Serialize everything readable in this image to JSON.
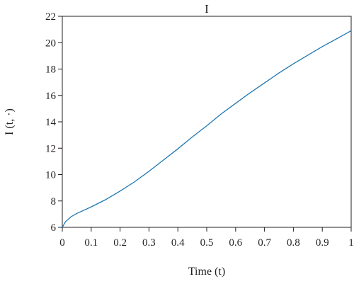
{
  "chart_data": {
    "type": "line",
    "title": "I",
    "xlabel": "Time (t)",
    "ylabel": "I (t, ·)",
    "xlim": [
      0,
      1
    ],
    "ylim": [
      6,
      22
    ],
    "x_ticks": [
      "0",
      "0.1",
      "0.2",
      "0.3",
      "0.4",
      "0.5",
      "0.6",
      "0.7",
      "0.8",
      "0.9",
      "1"
    ],
    "y_ticks": [
      "6",
      "8",
      "10",
      "12",
      "14",
      "16",
      "18",
      "20",
      "22"
    ],
    "grid": false,
    "colors": {
      "line": "#1f77b4",
      "axes": "#231f20"
    },
    "series": [
      {
        "x": [
          0,
          0.005,
          0.01,
          0.02,
          0.03,
          0.05,
          0.075,
          0.1,
          0.15,
          0.2,
          0.25,
          0.3,
          0.35,
          0.4,
          0.45,
          0.5,
          0.55,
          0.6,
          0.65,
          0.7,
          0.75,
          0.8,
          0.85,
          0.9,
          0.95,
          1.0
        ],
        "values": [
          5.9,
          6.2,
          6.4,
          6.6,
          6.8,
          7.05,
          7.3,
          7.55,
          8.1,
          8.75,
          9.45,
          10.25,
          11.1,
          11.95,
          12.85,
          13.7,
          14.6,
          15.4,
          16.2,
          16.95,
          17.7,
          18.4,
          19.05,
          19.7,
          20.3,
          20.9
        ]
      }
    ]
  }
}
